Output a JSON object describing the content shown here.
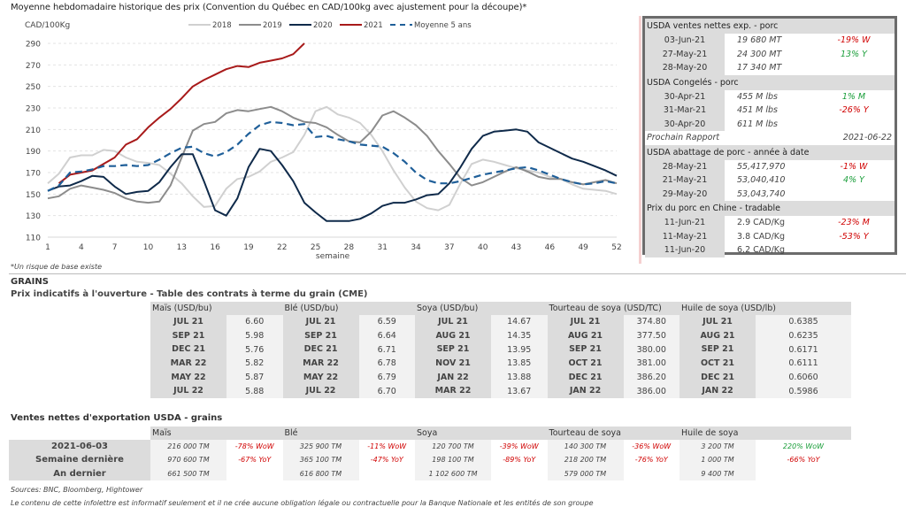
{
  "chart_title": "Moyenne hebdomadaire historique des prix (Convention du Québec en CAD/100kg avec ajustement pour la découpe)*",
  "footnote": "*Un risque de base existe",
  "chart_data": {
    "type": "line",
    "title": "Moyenne hebdomadaire historique des prix (Convention du Québec en CAD/100kg avec ajustement pour la découpe)*",
    "xlabel": "semaine",
    "ylabel": "CAD/100Kg",
    "ylim": [
      110,
      290
    ],
    "yticks": [
      110,
      130,
      150,
      170,
      190,
      210,
      230,
      250,
      270,
      290
    ],
    "xlim": [
      1,
      52
    ],
    "xticks": [
      1,
      4,
      7,
      10,
      13,
      16,
      19,
      22,
      25,
      28,
      31,
      34,
      37,
      40,
      43,
      46,
      49,
      52
    ],
    "grid": true,
    "legend_position": "top",
    "series": [
      {
        "name": "2018",
        "color": "#d0d0d0",
        "dash": false,
        "values": [
          160,
          169,
          184,
          186,
          186,
          191,
          190,
          184,
          180,
          179,
          177,
          169,
          160,
          148,
          138,
          139,
          155,
          164,
          166,
          171,
          180,
          184,
          189,
          205,
          227,
          231,
          224,
          221,
          216,
          205,
          190,
          172,
          156,
          143,
          137,
          135,
          140,
          160,
          178,
          182,
          180,
          177,
          174,
          172,
          170,
          166,
          164,
          159,
          155,
          154,
          153,
          150
        ]
      },
      {
        "name": "2019",
        "color": "#8c8c8c",
        "dash": false,
        "values": [
          146,
          148,
          155,
          158,
          156,
          154,
          151,
          146,
          143,
          142,
          143,
          158,
          184,
          209,
          215,
          217,
          225,
          228,
          227,
          229,
          231,
          227,
          221,
          217,
          216,
          212,
          205,
          199,
          198,
          208,
          223,
          227,
          221,
          214,
          204,
          190,
          178,
          165,
          158,
          161,
          166,
          171,
          175,
          171,
          166,
          164,
          164,
          161,
          159,
          161,
          163,
          160
        ]
      },
      {
        "name": "2020",
        "color": "#0f2a4a",
        "dash": false,
        "values": [
          153,
          157,
          158,
          162,
          167,
          166,
          157,
          150,
          152,
          153,
          161,
          175,
          187,
          187,
          162,
          135,
          130,
          146,
          175,
          192,
          190,
          177,
          162,
          142,
          133,
          125,
          125,
          125,
          127,
          132,
          139,
          142,
          142,
          145,
          149,
          150,
          160,
          175,
          192,
          204,
          208,
          209,
          210,
          208,
          198,
          193,
          188,
          183,
          180,
          176,
          172,
          167
        ]
      },
      {
        "name": "2021",
        "color": "#a81a1a",
        "dash": false,
        "values": [
          null,
          160,
          168,
          170,
          172,
          178,
          184,
          196,
          201,
          212,
          221,
          229,
          239,
          250,
          256,
          261,
          266,
          269,
          268,
          272,
          274,
          276,
          280,
          290
        ]
      },
      {
        "name": "Moyenne 5 ans",
        "color": "#1f5f99",
        "dash": true,
        "values": [
          153,
          158,
          170,
          171,
          173,
          176,
          176,
          177,
          176,
          177,
          182,
          188,
          193,
          194,
          188,
          185,
          189,
          196,
          206,
          214,
          217,
          216,
          214,
          215,
          203,
          204,
          201,
          199,
          196,
          195,
          194,
          188,
          180,
          170,
          163,
          160,
          160,
          162,
          165,
          168,
          170,
          172,
          174,
          175,
          172,
          168,
          164,
          161,
          159,
          160,
          162,
          160
        ]
      }
    ]
  },
  "side_panel": {
    "sections": [
      {
        "title": "USDA ventes nettes exp. - porc",
        "rows": [
          {
            "date": "03-Jun-21",
            "value": "19 680  MT",
            "change": "-19% W",
            "tone": "red"
          },
          {
            "date": "27-May-21",
            "value": "24 300  MT",
            "change": "13% Y",
            "tone": "green"
          },
          {
            "date": "28-May-20",
            "value": "17 340  MT",
            "change": "",
            "tone": ""
          }
        ]
      },
      {
        "title": "USDA Congelés - porc",
        "rows": [
          {
            "date": "30-Apr-21",
            "value": "455 M lbs",
            "change": "1% M",
            "tone": "green"
          },
          {
            "date": "31-Mar-21",
            "value": "451 M lbs",
            "change": "-26% Y",
            "tone": "red"
          },
          {
            "date": "30-Apr-20",
            "value": "611 M lbs",
            "change": "",
            "tone": ""
          }
        ],
        "next_report_label": "Prochain Rapport",
        "next_report_date": "2021-06-22"
      },
      {
        "title": "USDA abattage de porc - année à date",
        "rows": [
          {
            "date": "28-May-21",
            "value": "55,417,970",
            "change": "-1% W",
            "tone": "red"
          },
          {
            "date": "21-May-21",
            "value": "53,040,410",
            "change": "4% Y",
            "tone": "green"
          },
          {
            "date": "29-May-20",
            "value": "53,043,740",
            "change": "",
            "tone": ""
          }
        ]
      },
      {
        "title": "Prix du porc en Chine - tradable",
        "rows": [
          {
            "date": "11-Jun-21",
            "value": "2.9 CAD/Kg",
            "change": "-23% M",
            "tone": "red"
          },
          {
            "date": "11-May-21",
            "value": "3.8 CAD/Kg",
            "change": "-53% Y",
            "tone": "red"
          },
          {
            "date": "11-Jun-20",
            "value": "6.2 CAD/Kg",
            "change": "",
            "tone": ""
          }
        ]
      }
    ]
  },
  "grains": {
    "title": "GRAINS",
    "futures_title": "Prix indicatifs à l'ouverture - Table des contrats à terme du grain (CME)",
    "futures": [
      {
        "header": "Maïs (USD/bu)",
        "rows": [
          [
            "JUL 21",
            "6.60"
          ],
          [
            "SEP 21",
            "5.98"
          ],
          [
            "DEC 21",
            "5.76"
          ],
          [
            "MAR 22",
            "5.82"
          ],
          [
            "MAY 22",
            "5.87"
          ],
          [
            "JUL 22",
            "5.88"
          ]
        ]
      },
      {
        "header": "Blé (USD/bu)",
        "rows": [
          [
            "JUL 21",
            "6.59"
          ],
          [
            "SEP 21",
            "6.64"
          ],
          [
            "DEC 21",
            "6.71"
          ],
          [
            "MAR 22",
            "6.78"
          ],
          [
            "MAY 22",
            "6.79"
          ],
          [
            "JUL 22",
            "6.70"
          ]
        ]
      },
      {
        "header": "Soya (USD/bu)",
        "rows": [
          [
            "JUL 21",
            "14.67"
          ],
          [
            "AUG 21",
            "14.35"
          ],
          [
            "SEP 21",
            "13.95"
          ],
          [
            "NOV 21",
            "13.85"
          ],
          [
            "JAN 22",
            "13.88"
          ],
          [
            "MAR 22",
            "13.67"
          ]
        ]
      },
      {
        "header": "Tourteau de soya (USD/TC)",
        "rows": [
          [
            "JUL 21",
            "374.80"
          ],
          [
            "AUG 21",
            "377.50"
          ],
          [
            "SEP 21",
            "380.00"
          ],
          [
            "OCT 21",
            "381.00"
          ],
          [
            "DEC 21",
            "386.20"
          ],
          [
            "JAN 22",
            "386.00"
          ]
        ]
      },
      {
        "header": "Huile de soya (USD/lb)",
        "rows": [
          [
            "JUL 21",
            "0.6385"
          ],
          [
            "AUG 21",
            "0.6235"
          ],
          [
            "SEP 21",
            "0.6171"
          ],
          [
            "OCT 21",
            "0.6111"
          ],
          [
            "DEC 21",
            "0.6060"
          ],
          [
            "JAN 22",
            "0.5986"
          ]
        ]
      }
    ],
    "export_title": "Ventes nettes d'exportation USDA - grains",
    "export_row_labels": [
      "2021-06-03",
      "Semaine dernière",
      "An dernier"
    ],
    "exports": [
      {
        "header": "Maïs",
        "rows": [
          {
            "v": "216 000 TM",
            "c": "-78% WoW",
            "tone": "red"
          },
          {
            "v": "970 600 TM",
            "c": "-67% YoY",
            "tone": "red"
          },
          {
            "v": "661 500 TM",
            "c": "",
            "tone": ""
          }
        ]
      },
      {
        "header": "Blé",
        "rows": [
          {
            "v": "325 900 TM",
            "c": "-11% WoW",
            "tone": "red"
          },
          {
            "v": "365 100 TM",
            "c": "-47% YoY",
            "tone": "red"
          },
          {
            "v": "616 800 TM",
            "c": "",
            "tone": ""
          }
        ]
      },
      {
        "header": "Soya",
        "rows": [
          {
            "v": "120 700 TM",
            "c": "-39% WoW",
            "tone": "red"
          },
          {
            "v": "198 100 TM",
            "c": "-89% YoY",
            "tone": "red"
          },
          {
            "v": "1 102 600 TM",
            "c": "",
            "tone": ""
          }
        ]
      },
      {
        "header": "Tourteau de soya",
        "rows": [
          {
            "v": "140 300 TM",
            "c": "-36% WoW",
            "tone": "red"
          },
          {
            "v": "218 200 TM",
            "c": "-76% YoY",
            "tone": "red"
          },
          {
            "v": "579 000 TM",
            "c": "",
            "tone": ""
          }
        ]
      },
      {
        "header": "Huile de soya",
        "rows": [
          {
            "v": "3 200 TM",
            "c": "220% WoW",
            "tone": "green"
          },
          {
            "v": "1 000 TM",
            "c": "-66% YoY",
            "tone": "red"
          },
          {
            "v": "9 400 TM",
            "c": "",
            "tone": ""
          }
        ]
      }
    ]
  },
  "sources": "Sources: BNC, Bloomberg, Hightower",
  "disclaimer": "Le contenu de cette infolettre est informatif seulement et il ne crée aucune obligation légale ou contractuelle pour la Banque Nationale et les entités de son groupe"
}
